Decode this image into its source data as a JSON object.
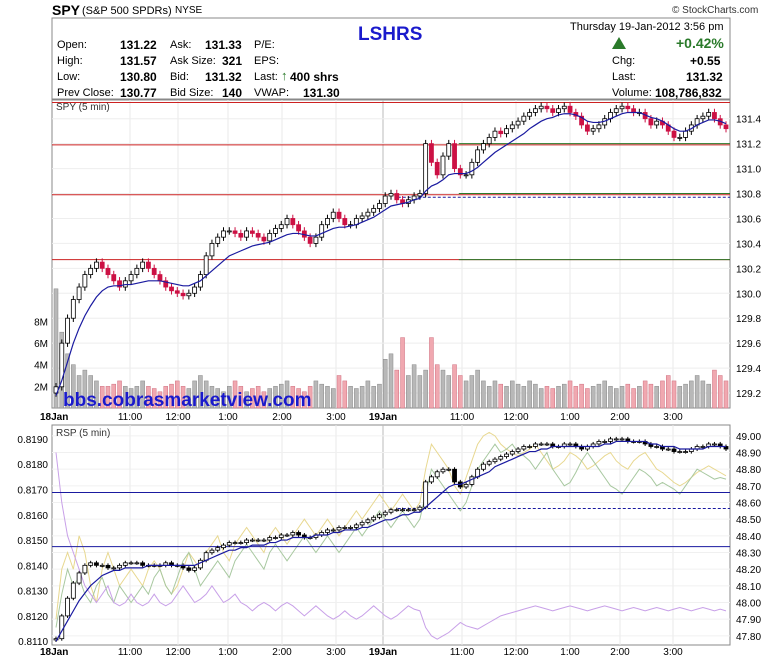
{
  "header": {
    "symbol": "SPY",
    "name": "(S&P 500 SPDRs)",
    "exchange": "NYSE",
    "credit": "© StockCharts.com",
    "annotation": "LSHRS",
    "date": "Thursday  19-Jan-2012  3:56 pm",
    "pct_change": "+0.42%",
    "quote": {
      "open_label": "Open:",
      "open": "131.22",
      "high_label": "High:",
      "high": "131.57",
      "low_label": "Low:",
      "low": "130.80",
      "prev_label": "Prev Close:",
      "prev": "130.77",
      "ask_label": "Ask:",
      "ask": "131.33",
      "asksize_label": "Ask Size:",
      "asksize": "321",
      "bid_label": "Bid:",
      "bid": "131.32",
      "bidsize_label": "Bid Size:",
      "bidsize": "140",
      "pe_label": "P/E:",
      "eps_label": "EPS:",
      "last_label": "Last:",
      "last_size": "400 shrs",
      "vwap_label": "VWAP:",
      "vwap": "131.30",
      "chg_label": "Chg:",
      "chg": "+0.55",
      "last2_label": "Last:",
      "last2": "131.32",
      "volume_label": "Volume:",
      "volume": "108,786,832"
    }
  },
  "watermark": "bbs.cobrasmarketview.com",
  "colors": {
    "up": "#000000",
    "down": "#cc1144",
    "ma": "#1a1aa0",
    "red_line": "#cc2222",
    "green_line": "#2a7a2a",
    "blue_line": "#1a1aa0",
    "title_blue": "#1a1acc",
    "gain_green": "#2a7a2a"
  },
  "chart_data": [
    {
      "type": "candlestick",
      "label": "SPY (5 min)",
      "ylim": [
        129.08,
        131.55
      ],
      "y_ticks": [
        "131.4",
        "131.2",
        "131.0",
        "130.8",
        "130.6",
        "130.4",
        "130.2",
        "130.0",
        "129.8",
        "129.6",
        "129.4",
        "129.2"
      ],
      "y_tick_values": [
        131.4,
        131.2,
        131.0,
        130.8,
        130.6,
        130.4,
        130.2,
        130.0,
        129.8,
        129.6,
        129.4,
        129.2
      ],
      "x_labels": [
        "18Jan",
        "11:00",
        "12:00",
        "1:00",
        "2:00",
        "3:00",
        "19Jan",
        "11:00",
        "12:00",
        "1:00",
        "2:00",
        "3:00"
      ],
      "volume_ticks": [
        "8M",
        "6M",
        "4M",
        "2M"
      ],
      "volume_tick_values": [
        8,
        6,
        4,
        2
      ],
      "volume_max": 12,
      "hlines": [
        {
          "value": 131.53,
          "color": "red"
        },
        {
          "value": 131.19,
          "color": "red"
        },
        {
          "value": 130.79,
          "color": "red"
        },
        {
          "value": 130.27,
          "color": "red"
        },
        {
          "value": 131.2,
          "color": "green",
          "from": 0.6
        },
        {
          "value": 130.8,
          "color": "green",
          "from": 0.6
        },
        {
          "value": 130.27,
          "color": "green",
          "from": 0.6
        },
        {
          "value": 130.77,
          "color": "blue_dash",
          "from": 0.51
        }
      ],
      "closes": [
        129.25,
        129.6,
        129.8,
        129.95,
        130.05,
        130.15,
        130.2,
        130.25,
        130.2,
        130.15,
        130.1,
        130.05,
        130.1,
        130.15,
        130.2,
        130.25,
        130.2,
        130.15,
        130.1,
        130.05,
        130.02,
        130.0,
        129.98,
        130.0,
        130.05,
        130.15,
        130.3,
        130.4,
        130.45,
        130.5,
        130.5,
        130.48,
        130.45,
        130.5,
        130.48,
        130.45,
        130.42,
        130.48,
        130.52,
        130.55,
        130.6,
        130.55,
        130.5,
        130.45,
        130.4,
        130.45,
        130.55,
        130.6,
        130.65,
        130.6,
        130.55,
        130.55,
        130.6,
        130.62,
        130.65,
        130.68,
        130.72,
        130.78,
        130.8,
        130.75,
        130.72,
        130.75,
        130.78,
        130.8,
        131.2,
        131.05,
        130.95,
        131.1,
        131.2,
        131.0,
        130.95,
        130.95,
        131.05,
        131.15,
        131.2,
        131.25,
        131.3,
        131.28,
        131.32,
        131.35,
        131.38,
        131.42,
        131.45,
        131.48,
        131.5,
        131.48,
        131.45,
        131.48,
        131.5,
        131.45,
        131.42,
        131.35,
        131.3,
        131.32,
        131.35,
        131.4,
        131.45,
        131.48,
        131.5,
        131.48,
        131.45,
        131.45,
        131.4,
        131.35,
        131.38,
        131.35,
        131.3,
        131.25,
        131.25,
        131.3,
        131.35,
        131.4,
        131.42,
        131.45,
        131.4,
        131.35,
        131.32
      ],
      "ma": [
        129.18,
        129.3,
        129.45,
        129.6,
        129.72,
        129.82,
        129.9,
        129.97,
        130.02,
        130.05,
        130.06,
        130.06,
        130.07,
        130.07,
        130.08,
        130.09,
        130.1,
        130.1,
        130.1,
        130.09,
        130.08,
        130.07,
        130.06,
        130.06,
        130.08,
        130.1,
        130.14,
        130.18,
        130.22,
        130.26,
        130.3,
        130.32,
        130.34,
        130.36,
        130.38,
        130.39,
        130.4,
        130.41,
        130.43,
        130.45,
        130.47,
        130.48,
        130.48,
        130.47,
        130.46,
        130.46,
        130.48,
        130.5,
        130.52,
        130.53,
        130.53,
        130.54,
        130.55,
        130.57,
        130.59,
        130.61,
        130.64,
        130.67,
        130.7,
        130.71,
        130.72,
        130.73,
        130.75,
        130.76,
        130.82,
        130.86,
        130.88,
        130.91,
        130.95,
        130.96,
        130.96,
        130.96,
        130.98,
        131.01,
        131.05,
        131.09,
        131.13,
        131.16,
        131.19,
        131.22,
        131.25,
        131.28,
        131.32,
        131.35,
        131.38,
        131.4,
        131.41,
        131.43,
        131.44,
        131.44,
        131.43,
        131.41,
        131.38,
        131.37,
        131.37,
        131.38,
        131.4,
        131.42,
        131.44,
        131.45,
        131.45,
        131.45,
        131.43,
        131.41,
        131.4,
        131.38,
        131.35,
        131.32,
        131.3,
        131.3,
        131.32,
        131.35,
        131.37,
        131.39,
        131.39,
        131.38,
        131.36
      ],
      "volume": [
        11,
        7,
        5,
        4,
        3,
        3.5,
        3,
        2.5,
        2,
        2,
        2.2,
        2.5,
        2,
        1.8,
        2,
        2.5,
        2,
        1.8,
        1.5,
        2,
        2.2,
        2.5,
        2,
        1.8,
        2.5,
        3,
        2.5,
        2,
        1.8,
        1.5,
        2,
        2.5,
        2,
        1.5,
        1.8,
        2,
        1.5,
        1.8,
        2,
        2.2,
        2.5,
        2,
        1.8,
        1.5,
        2,
        2.5,
        2.2,
        2,
        1.8,
        3,
        2.5,
        2,
        1.8,
        2,
        2.5,
        2,
        2.2,
        4.5,
        5,
        3.5,
        6.5,
        3,
        4,
        3,
        3.5,
        6.5,
        4,
        3.5,
        3,
        4,
        3,
        2.5,
        3,
        3.5,
        2.5,
        2,
        2.5,
        2.2,
        2,
        2.5,
        2.2,
        2,
        2.5,
        2.2,
        1.8,
        2,
        1.8,
        2,
        2.2,
        2.5,
        2,
        2.2,
        1.8,
        2,
        2.2,
        2.5,
        2,
        1.8,
        2,
        2.2,
        1.8,
        2,
        2.5,
        2.2,
        2,
        2.5,
        3,
        2.5,
        2,
        2.2,
        2.5,
        3,
        2.5,
        2.2,
        3.5,
        3,
        2.5
      ]
    },
    {
      "type": "candlestick",
      "label": "RSP (5 min)",
      "ylim": [
        0.81085,
        0.81955
      ],
      "y_ticks_left": [
        "0.8190",
        "0.8180",
        "0.8170",
        "0.8160",
        "0.8150",
        "0.8140",
        "0.8130",
        "0.8120",
        "0.8110"
      ],
      "y_tick_left_values": [
        0.819,
        0.818,
        0.817,
        0.816,
        0.815,
        0.814,
        0.813,
        0.812,
        0.811
      ],
      "y_ticks_right": [
        "49.00",
        "48.90",
        "48.80",
        "48.70",
        "48.60",
        "48.50",
        "48.40",
        "48.30",
        "48.20",
        "48.10",
        "48.00",
        "47.90",
        "47.80"
      ],
      "y_tick_right_values": [
        49.0,
        48.9,
        48.8,
        48.7,
        48.6,
        48.5,
        48.4,
        48.3,
        48.2,
        48.1,
        48.0,
        47.9,
        47.8
      ],
      "right_ylim": [
        47.745,
        49.065
      ],
      "x_labels": [
        "18Jan",
        "11:00",
        "12:00",
        "1:00",
        "2:00",
        "3:00",
        "19Jan",
        "11:00",
        "12:00",
        "1:00",
        "2:00",
        "3:00"
      ],
      "hlines": [
        {
          "value": 0.81688,
          "color": "blue"
        },
        {
          "value": 0.81474,
          "color": "blue"
        },
        {
          "value": 0.81625,
          "color": "blue_dash",
          "from": 0.51
        }
      ],
      "closes": [
        0.8111,
        0.812,
        0.8127,
        0.8133,
        0.8137,
        0.814,
        0.8141,
        0.814,
        0.814,
        0.8139,
        0.8139,
        0.814,
        0.8141,
        0.8141,
        0.8141,
        0.814,
        0.814,
        0.814,
        0.814,
        0.8141,
        0.814,
        0.814,
        0.8139,
        0.8138,
        0.8139,
        0.8142,
        0.8145,
        0.8146,
        0.8147,
        0.8148,
        0.8149,
        0.8149,
        0.8149,
        0.815,
        0.815,
        0.815,
        0.815,
        0.8151,
        0.8151,
        0.8152,
        0.8152,
        0.8153,
        0.8152,
        0.8151,
        0.8151,
        0.8152,
        0.8153,
        0.8154,
        0.8154,
        0.8155,
        0.8155,
        0.8155,
        0.8156,
        0.8157,
        0.8158,
        0.8159,
        0.816,
        0.8161,
        0.8162,
        0.8162,
        0.8162,
        0.8162,
        0.8162,
        0.8163,
        0.8173,
        0.8175,
        0.8177,
        0.8178,
        0.8178,
        0.8173,
        0.8171,
        0.8172,
        0.8175,
        0.8178,
        0.818,
        0.8181,
        0.8182,
        0.8183,
        0.8184,
        0.8185,
        0.8186,
        0.8187,
        0.8187,
        0.8188,
        0.8188,
        0.8188,
        0.8187,
        0.8187,
        0.8188,
        0.8188,
        0.8187,
        0.8186,
        0.8187,
        0.8188,
        0.8189,
        0.8189,
        0.819,
        0.819,
        0.819,
        0.8189,
        0.8189,
        0.8189,
        0.8188,
        0.8187,
        0.8187,
        0.8186,
        0.8186,
        0.8185,
        0.8185,
        0.8185,
        0.8186,
        0.8187,
        0.8187,
        0.8188,
        0.8188,
        0.8187,
        0.8186
      ],
      "ma": [
        0.811,
        0.8114,
        0.8118,
        0.8122,
        0.8126,
        0.8129,
        0.8132,
        0.8134,
        0.8136,
        0.8137,
        0.8138,
        0.8138,
        0.8139,
        0.8139,
        0.8139,
        0.8139,
        0.814,
        0.814,
        0.814,
        0.814,
        0.814,
        0.814,
        0.814,
        0.814,
        0.814,
        0.8141,
        0.8142,
        0.8143,
        0.8144,
        0.8145,
        0.8146,
        0.8146,
        0.8147,
        0.8147,
        0.8148,
        0.8148,
        0.8148,
        0.8149,
        0.8149,
        0.815,
        0.815,
        0.8151,
        0.8151,
        0.8151,
        0.8151,
        0.8152,
        0.8152,
        0.8152,
        0.8153,
        0.8153,
        0.8154,
        0.8154,
        0.8154,
        0.8155,
        0.8155,
        0.8156,
        0.8157,
        0.8158,
        0.8158,
        0.8159,
        0.816,
        0.816,
        0.8161,
        0.8161,
        0.8163,
        0.8165,
        0.8167,
        0.8169,
        0.8171,
        0.8172,
        0.8172,
        0.8173,
        0.8174,
        0.8175,
        0.8176,
        0.8177,
        0.8179,
        0.818,
        0.8181,
        0.8182,
        0.8183,
        0.8184,
        0.8185,
        0.8185,
        0.8186,
        0.8186,
        0.8187,
        0.8187,
        0.8187,
        0.8187,
        0.8187,
        0.8187,
        0.8187,
        0.8187,
        0.8187,
        0.8188,
        0.8188,
        0.8189,
        0.8189,
        0.8189,
        0.8189,
        0.8189,
        0.8189,
        0.8188,
        0.8188,
        0.8187,
        0.8187,
        0.8187,
        0.8186,
        0.8186,
        0.8186,
        0.8186,
        0.8186,
        0.8187,
        0.8187,
        0.8187,
        0.8187
      ],
      "aux_green": [
        47.85,
        48.05,
        48.2,
        48.1,
        48.15,
        48.05,
        48.0,
        48.1,
        48.15,
        48.05,
        48.0,
        48.1,
        48.05,
        48.0,
        48.05,
        48.1,
        48.05,
        48.15,
        48.2,
        48.1,
        48.05,
        48.15,
        48.25,
        48.3,
        48.2,
        48.1,
        48.15,
        48.2,
        48.25,
        48.2,
        48.15,
        48.25,
        48.3,
        48.35,
        48.3,
        48.25,
        48.2,
        48.3,
        48.35,
        48.3,
        48.25,
        48.3,
        48.35,
        48.4,
        48.35,
        48.3,
        48.35,
        48.4,
        48.35,
        48.3,
        48.35,
        48.4,
        48.45,
        48.4,
        48.45,
        48.5,
        48.55,
        48.5,
        48.45,
        48.5,
        48.55,
        48.5,
        48.45,
        48.5,
        48.65,
        48.8,
        48.75,
        48.7,
        48.65,
        48.6,
        48.55,
        48.6,
        48.7,
        48.8,
        48.85,
        48.9,
        48.95,
        48.9,
        48.92,
        48.95,
        48.9,
        48.88,
        48.85,
        48.8,
        48.85,
        48.9,
        48.8,
        48.75,
        48.7,
        48.72,
        48.78,
        48.85,
        48.9,
        48.85,
        48.8,
        48.75,
        48.7,
        48.68,
        48.65,
        48.7,
        48.75,
        48.8,
        48.78,
        48.75,
        48.7,
        48.72,
        48.7,
        48.68,
        48.65,
        48.7,
        48.75,
        48.8,
        48.78,
        48.76,
        48.74,
        48.75,
        48.74
      ],
      "aux_yellow": [
        47.9,
        48.2,
        48.3,
        48.2,
        48.4,
        48.3,
        48.1,
        48.0,
        48.2,
        48.3,
        48.2,
        48.1,
        48.15,
        48.2,
        48.15,
        48.1,
        48.2,
        48.25,
        48.2,
        48.1,
        48.05,
        48.1,
        48.2,
        48.3,
        48.25,
        48.2,
        48.3,
        48.35,
        48.4,
        48.3,
        48.25,
        48.35,
        48.4,
        48.45,
        48.4,
        48.35,
        48.3,
        48.4,
        48.45,
        48.4,
        48.35,
        48.4,
        48.45,
        48.5,
        48.45,
        48.4,
        48.45,
        48.5,
        48.45,
        48.4,
        48.45,
        48.5,
        48.55,
        48.5,
        48.55,
        48.6,
        48.65,
        48.6,
        48.55,
        48.6,
        48.65,
        48.6,
        48.55,
        48.6,
        48.8,
        48.95,
        48.9,
        48.85,
        48.8,
        48.7,
        48.65,
        48.75,
        48.85,
        48.95,
        49.0,
        49.02,
        49.0,
        48.95,
        48.92,
        48.9,
        48.88,
        48.9,
        48.92,
        48.95,
        48.9,
        48.85,
        48.8,
        48.82,
        48.85,
        48.9,
        48.88,
        48.85,
        48.8,
        48.82,
        48.85,
        48.88,
        48.9,
        48.85,
        48.82,
        48.8,
        48.85,
        48.88,
        48.9,
        48.85,
        48.8,
        48.78,
        48.75,
        48.72,
        48.7,
        48.72,
        48.75,
        48.78,
        48.8,
        48.82,
        48.8,
        48.78,
        48.76
      ],
      "aux_purple": [
        48.9,
        48.6,
        48.4,
        48.3,
        48.2,
        48.1,
        48.05,
        48.0,
        48.05,
        48.1,
        48.0,
        47.98,
        48.0,
        48.05,
        48.0,
        47.98,
        48.0,
        48.05,
        48.0,
        47.98,
        48.0,
        48.05,
        48.1,
        48.05,
        48.0,
        48.02,
        48.05,
        48.1,
        48.05,
        48.0,
        48.02,
        48.05,
        48.0,
        47.98,
        47.95,
        47.98,
        48.0,
        47.98,
        47.95,
        47.98,
        48.0,
        47.98,
        47.95,
        47.92,
        47.95,
        47.98,
        47.95,
        47.92,
        47.9,
        47.92,
        47.95,
        47.92,
        47.9,
        47.92,
        47.95,
        47.98,
        47.95,
        47.92,
        47.9,
        47.92,
        47.95,
        47.98,
        47.96,
        47.95,
        47.85,
        47.8,
        47.78,
        47.8,
        47.82,
        47.85,
        47.88,
        47.86,
        47.85,
        47.84,
        47.86,
        47.88,
        47.9,
        47.92,
        47.93,
        47.94,
        47.95,
        47.96,
        47.97,
        47.98,
        47.97,
        47.96,
        47.95,
        47.96,
        47.97,
        47.98,
        47.97,
        47.96,
        47.95,
        47.96,
        47.97,
        47.98,
        47.97,
        47.96,
        47.95,
        47.96,
        47.97,
        47.96,
        47.95,
        47.96,
        47.97,
        47.96,
        47.95,
        47.96,
        47.97,
        47.96,
        47.95,
        47.96,
        47.97,
        47.96,
        47.95,
        47.96,
        47.95
      ]
    }
  ]
}
